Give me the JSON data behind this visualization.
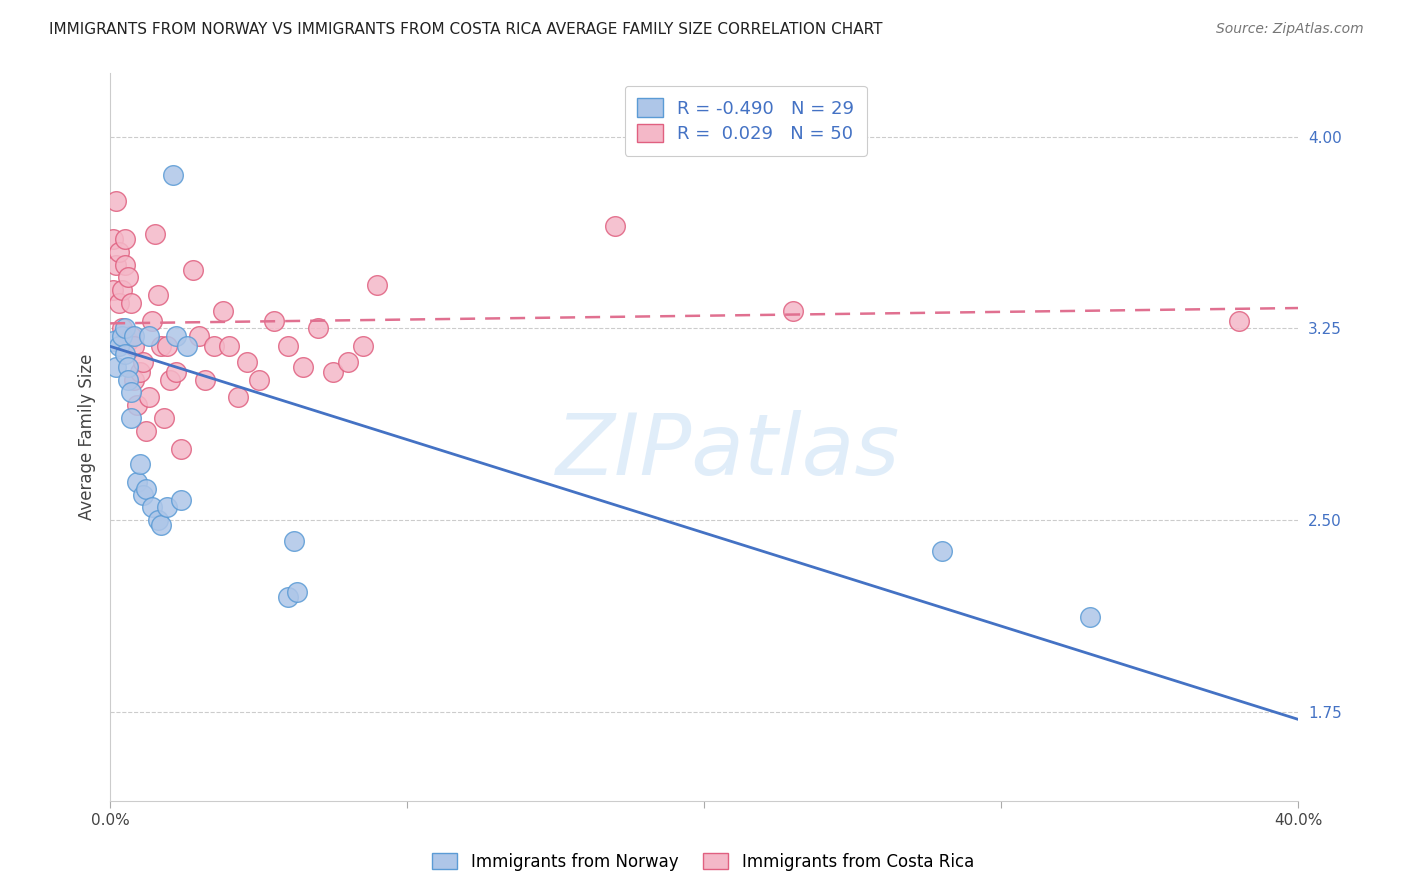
{
  "title": "IMMIGRANTS FROM NORWAY VS IMMIGRANTS FROM COSTA RICA AVERAGE FAMILY SIZE CORRELATION CHART",
  "source": "Source: ZipAtlas.com",
  "ylabel": "Average Family Size",
  "yticks_right": [
    1.75,
    2.5,
    3.25,
    4.0
  ],
  "xlim": [
    0.0,
    0.4
  ],
  "ylim": [
    1.4,
    4.25
  ],
  "norway_color": "#aec6e8",
  "norway_edge": "#5b9bd5",
  "costa_rica_color": "#f4b8c8",
  "costa_rica_edge": "#e06080",
  "norway_R": -0.49,
  "norway_N": 29,
  "costa_rica_R": 0.029,
  "costa_rica_N": 50,
  "norway_line_color": "#4472c4",
  "costa_rica_line_color": "#e07090",
  "watermark": "ZIPatlas",
  "norway_x": [
    0.001,
    0.002,
    0.003,
    0.004,
    0.005,
    0.005,
    0.006,
    0.006,
    0.007,
    0.007,
    0.008,
    0.009,
    0.01,
    0.011,
    0.012,
    0.013,
    0.014,
    0.016,
    0.017,
    0.019,
    0.021,
    0.022,
    0.024,
    0.026,
    0.06,
    0.062,
    0.063,
    0.28,
    0.33
  ],
  "norway_y": [
    3.2,
    3.1,
    3.18,
    3.22,
    3.15,
    3.25,
    3.1,
    3.05,
    3.0,
    2.9,
    3.22,
    2.65,
    2.72,
    2.6,
    2.62,
    3.22,
    2.55,
    2.5,
    2.48,
    2.55,
    3.85,
    3.22,
    2.58,
    3.18,
    2.2,
    2.42,
    2.22,
    2.38,
    2.12
  ],
  "costa_rica_x": [
    0.001,
    0.001,
    0.002,
    0.002,
    0.003,
    0.003,
    0.004,
    0.004,
    0.005,
    0.005,
    0.006,
    0.006,
    0.007,
    0.007,
    0.008,
    0.008,
    0.009,
    0.01,
    0.011,
    0.012,
    0.013,
    0.014,
    0.015,
    0.016,
    0.017,
    0.018,
    0.019,
    0.02,
    0.022,
    0.024,
    0.028,
    0.03,
    0.032,
    0.035,
    0.038,
    0.04,
    0.043,
    0.046,
    0.05,
    0.055,
    0.06,
    0.065,
    0.07,
    0.075,
    0.08,
    0.085,
    0.09,
    0.17,
    0.23,
    0.38
  ],
  "costa_rica_y": [
    3.6,
    3.4,
    3.75,
    3.5,
    3.55,
    3.35,
    3.4,
    3.25,
    3.5,
    3.6,
    3.45,
    3.2,
    3.35,
    3.22,
    3.05,
    3.18,
    2.95,
    3.08,
    3.12,
    2.85,
    2.98,
    3.28,
    3.62,
    3.38,
    3.18,
    2.9,
    3.18,
    3.05,
    3.08,
    2.78,
    3.48,
    3.22,
    3.05,
    3.18,
    3.32,
    3.18,
    2.98,
    3.12,
    3.05,
    3.28,
    3.18,
    3.1,
    3.25,
    3.08,
    3.12,
    3.18,
    3.42,
    3.65,
    3.32,
    3.28
  ],
  "norway_line_y0": 3.18,
  "norway_line_y1": 1.72,
  "costa_rica_line_y0": 3.27,
  "costa_rica_line_y1": 3.33
}
